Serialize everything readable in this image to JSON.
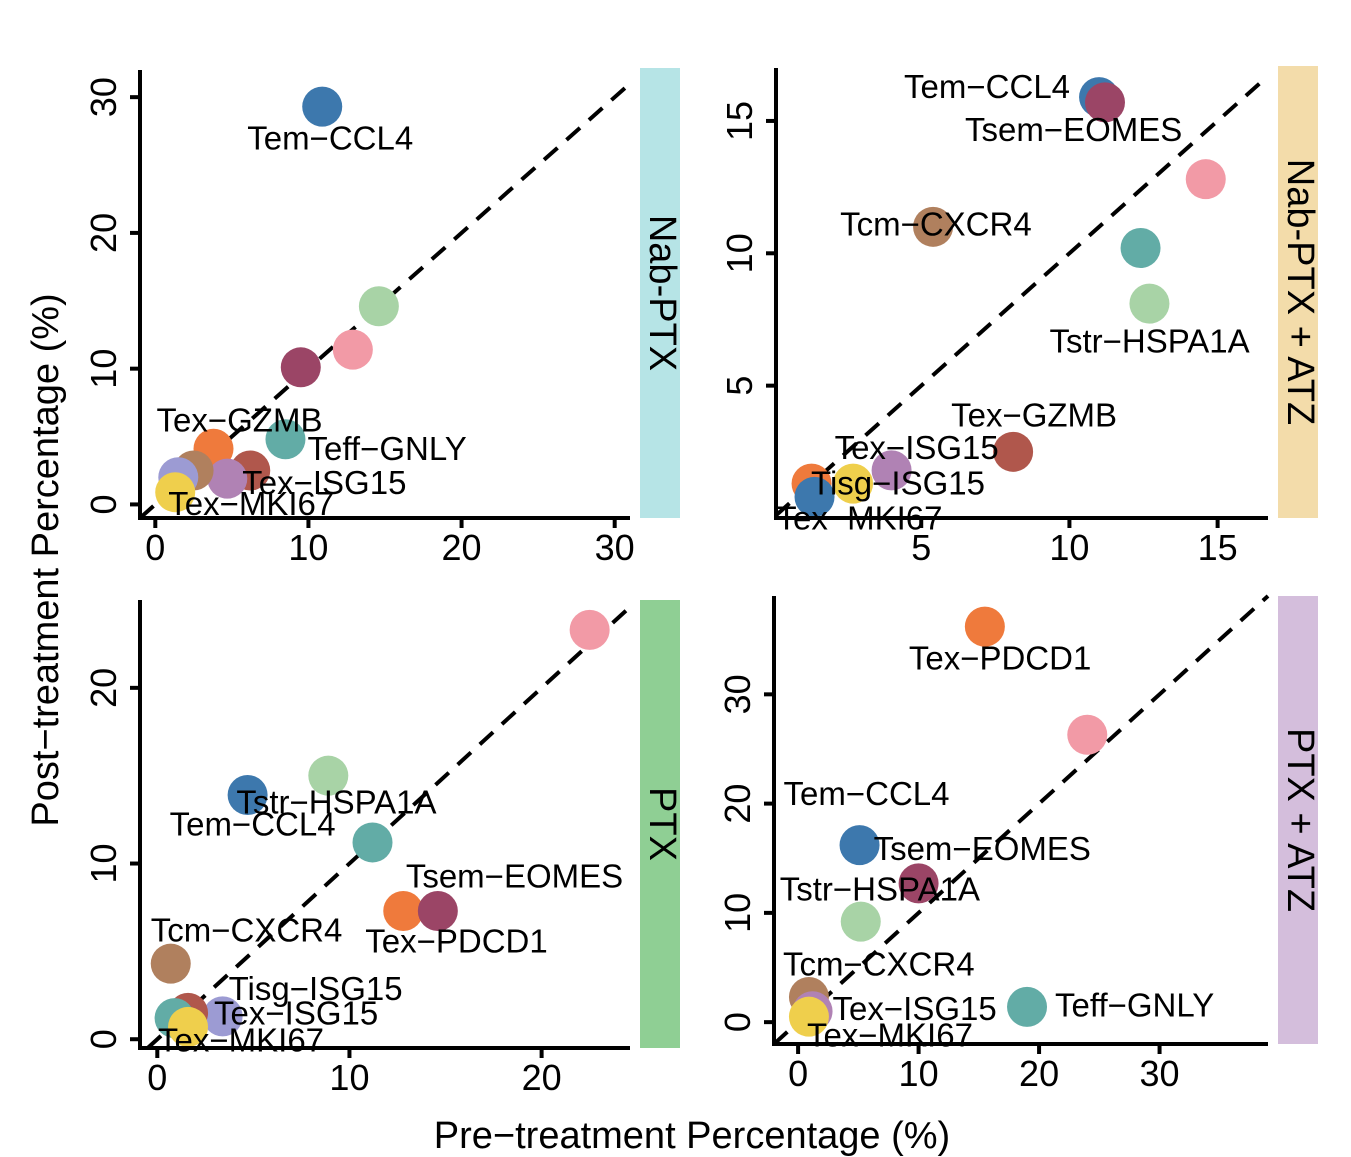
{
  "figure": {
    "xlabel": "Pre−treatment Percentage (%)",
    "ylabel": "Post−treatment Percentage (%)"
  },
  "colors": {
    "Tem-CCL4": "#3d78ad",
    "Tsem-EOMES": "#9b4566",
    "Tcm-CXCR4": "#b0805e",
    "Tstr-HSPA1A": "#a8d3a6",
    "Teff-GNLY": "#62aca6",
    "Tex-GZMB": "#b0574c",
    "Tex-ISG15": "#b082b4",
    "Tex-MKI67": "#efcf4c",
    "Tisg-ISG15": "#9c9bd3",
    "Tex-PDCD1": "#ef7a3c",
    "Tpk-pink": "#f29aa6",
    "strip_Nab-PTX": "#b6e4e6",
    "strip_Nab-PTX_ATZ": "#f3dcaa",
    "strip_PTX": "#8fcf94",
    "strip_PTX_ATZ": "#d4bedc"
  },
  "chart_data": [
    {
      "type": "scatter",
      "panel": "Nab-PTX",
      "xlim": [
        -1,
        31
      ],
      "ylim": [
        -1,
        32
      ],
      "xticks": [
        "0",
        "10",
        "20",
        "30"
      ],
      "xtick_values": [
        0,
        10,
        20,
        30
      ],
      "yticks": [
        "0",
        "10",
        "20",
        "30"
      ],
      "ytick_values": [
        0,
        10,
        20,
        30
      ],
      "points": [
        {
          "x": 10.9,
          "y": 29.3,
          "color": "#3d78ad",
          "label": "Tem−CCL4"
        },
        {
          "x": 14.6,
          "y": 14.6,
          "color": "#a8d3a6",
          "label": ""
        },
        {
          "x": 12.9,
          "y": 11.4,
          "color": "#f29aa6",
          "label": ""
        },
        {
          "x": 9.5,
          "y": 10.1,
          "color": "#9b4566",
          "label": ""
        },
        {
          "x": 8.5,
          "y": 4.8,
          "color": "#62aca6",
          "label": "Teff−GNLY"
        },
        {
          "x": 3.8,
          "y": 4.1,
          "color": "#ef7a3c",
          "label": "Tex−GZMB"
        },
        {
          "x": 6.2,
          "y": 2.5,
          "color": "#b0574c",
          "label": "Tex−ISG15"
        },
        {
          "x": 4.7,
          "y": 1.9,
          "color": "#b082b4",
          "label": ""
        },
        {
          "x": 2.5,
          "y": 2.5,
          "color": "#b0805e",
          "label": ""
        },
        {
          "x": 1.5,
          "y": 2.0,
          "color": "#9c9bd3",
          "label": ""
        },
        {
          "x": 1.3,
          "y": 0.9,
          "color": "#efcf4c",
          "label": "Tex−MKI67"
        }
      ]
    },
    {
      "type": "scatter",
      "panel": "Nab-PTX + ATZ",
      "xlim": [
        0.1,
        16.7
      ],
      "ylim": [
        0,
        17
      ],
      "xticks": [
        "5",
        "10",
        "15"
      ],
      "xtick_values": [
        5,
        10,
        15
      ],
      "yticks": [
        "5",
        "10",
        "15"
      ],
      "ytick_values": [
        5,
        10,
        15
      ],
      "points": [
        {
          "x": 11.0,
          "y": 15.9,
          "color": "#3d78ad",
          "label": "Tem−CCL4"
        },
        {
          "x": 11.2,
          "y": 15.7,
          "color": "#9b4566",
          "label": "Tsem−EOMES"
        },
        {
          "x": 14.6,
          "y": 12.8,
          "color": "#f29aa6",
          "label": ""
        },
        {
          "x": 5.4,
          "y": 11.0,
          "color": "#b0805e",
          "label": "Tcm−CXCR4"
        },
        {
          "x": 12.4,
          "y": 10.2,
          "color": "#62aca6",
          "label": ""
        },
        {
          "x": 12.7,
          "y": 8.1,
          "color": "#a8d3a6",
          "label": "Tstr−HSPA1A"
        },
        {
          "x": 8.1,
          "y": 2.5,
          "color": "#b0574c",
          "label": "Tex−GZMB"
        },
        {
          "x": 4.0,
          "y": 1.8,
          "color": "#b082b4",
          "label": "Tex−ISG15"
        },
        {
          "x": 1.3,
          "y": 1.3,
          "color": "#ef7a3c",
          "label": ""
        },
        {
          "x": 2.7,
          "y": 1.3,
          "color": "#efcf4c",
          "label": "Tisg−ISG15"
        },
        {
          "x": 1.4,
          "y": 0.8,
          "color": "#3d78ad",
          "label": "Tex−MKI67"
        }
      ]
    },
    {
      "type": "scatter",
      "panel": "PTX",
      "xlim": [
        -0.9,
        24.6
      ],
      "ylim": [
        -0.5,
        25
      ],
      "xticks": [
        "0",
        "10",
        "20"
      ],
      "xtick_values": [
        0,
        10,
        20
      ],
      "yticks": [
        "0",
        "10",
        "20"
      ],
      "ytick_values": [
        0,
        10,
        20
      ],
      "points": [
        {
          "x": 22.5,
          "y": 23.3,
          "color": "#f29aa6",
          "label": ""
        },
        {
          "x": 8.9,
          "y": 15.0,
          "color": "#a8d3a6",
          "label": "Tstr−HSPA1A"
        },
        {
          "x": 4.7,
          "y": 13.9,
          "color": "#3d78ad",
          "label": "Tem−CCL4"
        },
        {
          "x": 11.2,
          "y": 11.2,
          "color": "#62aca6",
          "label": ""
        },
        {
          "x": 12.8,
          "y": 7.3,
          "color": "#ef7a3c",
          "label": "Tex−PDCD1"
        },
        {
          "x": 14.6,
          "y": 7.3,
          "color": "#9b4566",
          "label": "Tsem−EOMES"
        },
        {
          "x": 0.7,
          "y": 4.3,
          "color": "#b0805e",
          "label": "Tcm−CXCR4"
        },
        {
          "x": 3.4,
          "y": 1.3,
          "color": "#9c9bd3",
          "label": "Tisg−ISG15"
        },
        {
          "x": 1.6,
          "y": 1.5,
          "color": "#b0574c",
          "label": "Tex−ISG15"
        },
        {
          "x": 0.9,
          "y": 1.2,
          "color": "#62aca6",
          "label": ""
        },
        {
          "x": 1.6,
          "y": 0.7,
          "color": "#efcf4c",
          "label": "Tex−MKI67"
        }
      ]
    },
    {
      "type": "scatter",
      "panel": "PTX + ATZ",
      "xlim": [
        -2,
        39
      ],
      "ylim": [
        -2,
        39
      ],
      "xticks": [
        "0",
        "10",
        "20",
        "30"
      ],
      "xtick_values": [
        0,
        10,
        20,
        30
      ],
      "yticks": [
        "0",
        "10",
        "20",
        "30"
      ],
      "ytick_values": [
        0,
        10,
        20,
        30
      ],
      "points": [
        {
          "x": 15.5,
          "y": 36.2,
          "color": "#ef7a3c",
          "label": "Tex−PDCD1"
        },
        {
          "x": 24.0,
          "y": 26.3,
          "color": "#f29aa6",
          "label": ""
        },
        {
          "x": 5.1,
          "y": 16.2,
          "color": "#3d78ad",
          "label": "Tem−CCL4"
        },
        {
          "x": 10.0,
          "y": 12.7,
          "color": "#9b4566",
          "label": "Tsem−EOMES"
        },
        {
          "x": 5.2,
          "y": 9.2,
          "color": "#a8d3a6",
          "label": "Tstr−HSPA1A"
        },
        {
          "x": 0.9,
          "y": 2.3,
          "color": "#b0805e",
          "label": "Tcm−CXCR4"
        },
        {
          "x": 19.0,
          "y": 1.4,
          "color": "#62aca6",
          "label": "Teff−GNLY"
        },
        {
          "x": 1.2,
          "y": 1.0,
          "color": "#b082b4",
          "label": "Tex−ISG15"
        },
        {
          "x": 0.9,
          "y": 0.5,
          "color": "#efcf4c",
          "label": "Tex−MKI67"
        }
      ]
    }
  ]
}
